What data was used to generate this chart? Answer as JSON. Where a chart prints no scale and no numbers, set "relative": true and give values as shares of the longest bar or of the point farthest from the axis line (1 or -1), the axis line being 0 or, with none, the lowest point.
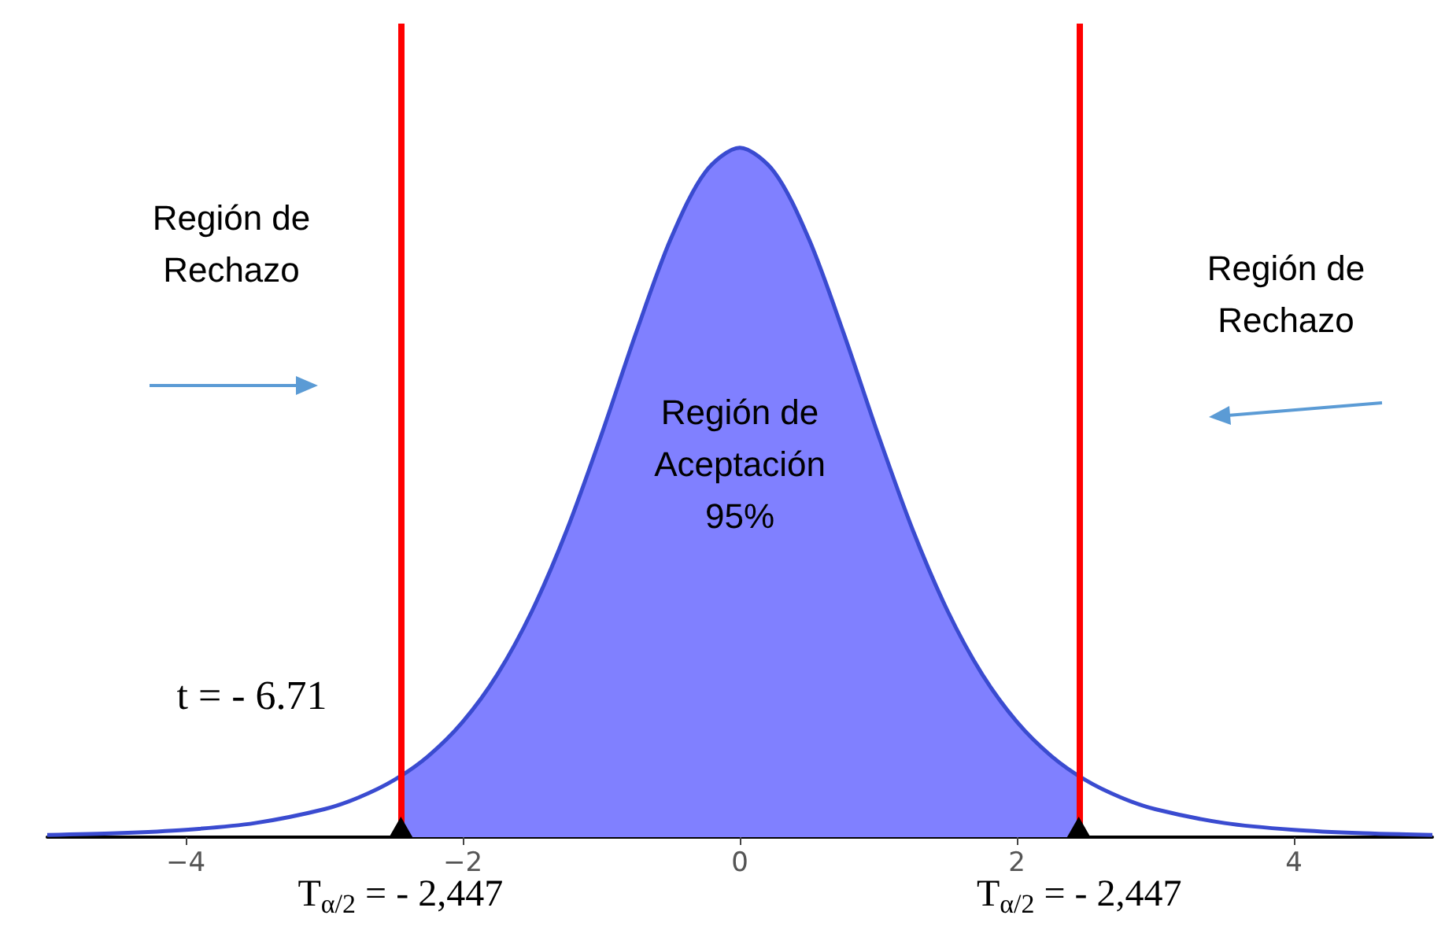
{
  "chart_data": {
    "type": "line",
    "relative": true,
    "x": [
      -5,
      -4.5,
      -4,
      -3.5,
      -3,
      -2.75,
      -2.5,
      -2.25,
      -2,
      -1.75,
      -1.5,
      -1.25,
      -1,
      -0.75,
      -0.5,
      -0.25,
      0,
      0.25,
      0.5,
      0.75,
      1,
      1.25,
      1.5,
      1.75,
      2,
      2.25,
      2.5,
      2.75,
      3,
      3.5,
      4,
      4.5,
      5
    ],
    "series": [
      {
        "color": "#3a4bd0",
        "values": [
          0.0032,
          0.0057,
          0.0106,
          0.0204,
          0.0405,
          0.0576,
          0.0822,
          0.1175,
          0.1673,
          0.2361,
          0.3281,
          0.4448,
          0.583,
          0.7308,
          0.8669,
          0.9644,
          1,
          0.9644,
          0.8669,
          0.7308,
          0.583,
          0.4448,
          0.3281,
          0.2361,
          0.1673,
          0.1175,
          0.0822,
          0.0576,
          0.0405,
          0.0204,
          0.0106,
          0.0057,
          0.0032
        ]
      },
      {
        "type": "area",
        "color": "#8080ff",
        "x": [
          -2.447,
          -2.25,
          -2,
          -1.75,
          -1.5,
          -1.25,
          -1,
          -0.75,
          -0.5,
          -0.25,
          0,
          0.25,
          0.5,
          0.75,
          1,
          1.25,
          1.5,
          1.75,
          2,
          2.25,
          2.447
        ],
        "values": [
          0.088,
          0.1175,
          0.1673,
          0.2361,
          0.3281,
          0.4448,
          0.583,
          0.7308,
          0.8669,
          0.9644,
          1,
          0.9644,
          0.8669,
          0.7308,
          0.583,
          0.4448,
          0.3281,
          0.2361,
          0.1673,
          0.1175,
          0.088
        ]
      }
    ],
    "xlim": [
      -5,
      5
    ],
    "xticks": [
      -4,
      -2,
      0,
      2,
      4
    ],
    "ref_lines": [
      {
        "axis": "x",
        "value": -2.447,
        "label": "T$_{α/2}$ = - 2,447",
        "color": "#ff0000"
      },
      {
        "axis": "x",
        "value": 2.447,
        "label": "T$_{α/2}$ = - 2,447",
        "color": "#ff0000"
      }
    ],
    "annotations": [
      "Región de\nRechazo",
      "Región de\nRechazo",
      "Región de\nAceptación\n95%",
      "t = - 6.71"
    ],
    "grid": false,
    "marker": "none"
  }
}
